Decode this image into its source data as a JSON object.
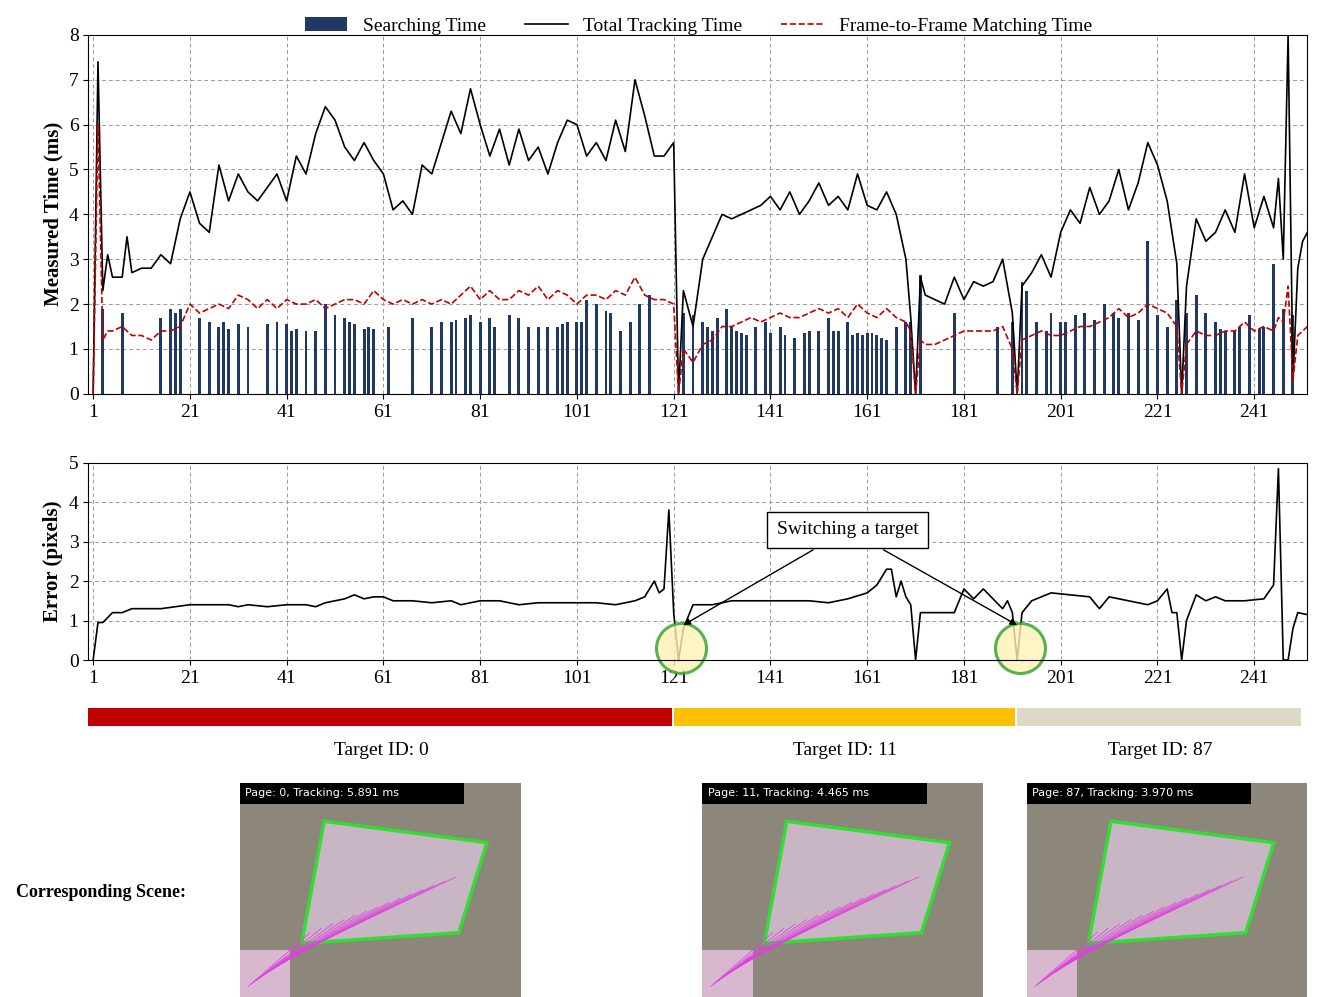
{
  "chart_data": [
    {
      "type": "line",
      "y_label": "Measured Time (ms)",
      "xlim": [
        0,
        252
      ],
      "xticks": [
        1,
        21,
        41,
        61,
        81,
        101,
        121,
        141,
        161,
        181,
        201,
        221,
        241
      ],
      "ylim": [
        0,
        8
      ],
      "yticks": [
        0,
        1,
        2,
        3,
        4,
        5,
        6,
        7,
        8
      ],
      "grid": true,
      "legend": "upper center",
      "series": [
        {
          "name": "Searching Time",
          "type": "bar",
          "color": "#1f3864",
          "x": [
            3,
            7,
            15,
            17,
            18,
            19,
            23,
            25,
            27,
            28,
            29,
            31,
            33,
            37,
            39,
            41,
            42,
            43,
            45,
            47,
            49,
            51,
            53,
            54,
            55,
            57,
            58,
            59,
            62,
            67,
            71,
            73,
            75,
            76,
            78,
            79,
            81,
            83,
            84,
            87,
            89,
            91,
            93,
            95,
            97,
            98,
            99,
            101,
            102,
            103,
            105,
            107,
            108,
            110,
            112,
            114,
            116,
            123,
            125,
            127,
            128,
            129,
            130,
            132,
            133,
            134,
            135,
            136,
            138,
            140,
            141,
            143,
            144,
            146,
            148,
            149,
            151,
            153,
            154,
            155,
            157,
            158,
            159,
            160,
            161,
            162,
            163,
            164,
            165,
            167,
            169,
            170,
            172,
            179,
            188,
            191,
            193,
            194,
            196,
            198,
            199,
            201,
            202,
            204,
            206,
            208,
            210,
            212,
            213,
            215,
            217,
            219,
            221,
            223,
            225,
            227,
            229,
            231,
            233,
            234,
            235,
            237,
            238,
            240,
            242,
            243,
            245,
            247,
            249
          ],
          "values": [
            1.9,
            1.8,
            1.7,
            1.9,
            1.8,
            1.9,
            1.7,
            1.6,
            1.5,
            1.6,
            1.45,
            1.55,
            1.5,
            1.55,
            1.6,
            1.55,
            1.4,
            1.45,
            1.4,
            1.4,
            2.0,
            1.75,
            1.7,
            1.6,
            1.55,
            1.45,
            1.5,
            1.45,
            1.5,
            1.7,
            1.5,
            1.6,
            1.6,
            1.65,
            1.7,
            1.75,
            1.6,
            1.7,
            1.5,
            1.75,
            1.7,
            1.5,
            1.5,
            1.5,
            1.5,
            1.55,
            1.6,
            1.6,
            1.6,
            2.1,
            2.0,
            1.85,
            1.8,
            1.4,
            1.6,
            2.0,
            2.2,
            1.8,
            1.75,
            1.6,
            1.5,
            1.4,
            1.7,
            1.9,
            1.5,
            1.4,
            1.35,
            1.3,
            1.5,
            1.6,
            1.35,
            1.5,
            1.3,
            1.25,
            1.35,
            1.4,
            1.4,
            1.7,
            1.4,
            1.4,
            1.6,
            1.3,
            1.35,
            1.3,
            1.35,
            1.35,
            1.3,
            1.25,
            1.2,
            1.5,
            1.6,
            1.6,
            2.65,
            1.8,
            1.5,
            1.6,
            2.5,
            2.3,
            1.6,
            1.4,
            1.8,
            1.6,
            1.6,
            1.75,
            1.8,
            1.65,
            2.0,
            1.8,
            1.7,
            1.8,
            1.65,
            3.4,
            1.75,
            1.5,
            2.1,
            1.8,
            2.2,
            1.8,
            1.6,
            1.45,
            1.4,
            1.4,
            1.5,
            1.75,
            1.45,
            1.5,
            2.9,
            1.9,
            1.75
          ]
        },
        {
          "name": "Total Tracking Time",
          "type": "line",
          "color": "#000000",
          "line_style": "solid",
          "x": [
            1,
            2,
            3,
            4,
            5,
            7,
            8,
            9,
            11,
            13,
            15,
            17,
            19,
            21,
            23,
            25,
            27,
            29,
            31,
            33,
            35,
            37,
            39,
            41,
            43,
            45,
            47,
            49,
            51,
            53,
            55,
            57,
            59,
            61,
            63,
            65,
            67,
            69,
            71,
            73,
            75,
            77,
            79,
            81,
            83,
            85,
            87,
            89,
            91,
            93,
            95,
            97,
            99,
            101,
            103,
            105,
            107,
            109,
            111,
            113,
            115,
            117,
            119,
            121,
            122,
            123,
            125,
            127,
            129,
            131,
            133,
            135,
            137,
            139,
            141,
            143,
            145,
            147,
            149,
            151,
            153,
            155,
            157,
            159,
            161,
            163,
            165,
            167,
            169,
            170,
            171,
            172,
            173,
            175,
            177,
            179,
            181,
            183,
            185,
            187,
            189,
            191,
            192,
            193,
            195,
            197,
            199,
            201,
            203,
            205,
            207,
            209,
            211,
            213,
            215,
            217,
            219,
            221,
            223,
            225,
            226,
            227,
            229,
            231,
            233,
            235,
            237,
            239,
            241,
            243,
            245,
            246,
            247,
            248,
            249,
            250,
            251,
            252
          ],
          "values": [
            0,
            7.4,
            2.3,
            3.1,
            2.6,
            2.6,
            3.5,
            2.7,
            2.8,
            2.8,
            3.1,
            2.9,
            3.9,
            4.5,
            3.8,
            3.6,
            5.1,
            4.3,
            4.9,
            4.5,
            4.3,
            4.6,
            4.9,
            4.3,
            5.3,
            4.9,
            5.8,
            6.4,
            6.1,
            5.5,
            5.2,
            5.6,
            5.2,
            4.9,
            4.1,
            4.3,
            4.0,
            5.1,
            4.9,
            5.6,
            6.3,
            5.8,
            6.8,
            6.0,
            5.3,
            5.9,
            5.1,
            5.9,
            5.2,
            5.5,
            4.9,
            5.6,
            6.1,
            6.0,
            5.3,
            5.6,
            5.2,
            6.1,
            5.4,
            7.0,
            6.2,
            5.3,
            5.3,
            5.6,
            0,
            2.3,
            1.5,
            3.0,
            3.5,
            4.0,
            3.9,
            4.0,
            4.1,
            4.2,
            4.4,
            4.1,
            4.5,
            4.0,
            4.3,
            4.7,
            4.2,
            4.4,
            4.1,
            4.9,
            4.2,
            4.1,
            4.5,
            4.0,
            3.0,
            1.7,
            0,
            2.6,
            2.2,
            2.1,
            2.0,
            2.6,
            2.1,
            2.5,
            2.4,
            2.5,
            3.0,
            1.8,
            0,
            2.4,
            2.7,
            3.1,
            2.6,
            3.6,
            4.1,
            3.8,
            4.6,
            4.0,
            4.3,
            5.0,
            4.1,
            4.7,
            5.6,
            5.1,
            4.3,
            2.9,
            0,
            2.4,
            3.9,
            3.4,
            3.6,
            4.1,
            3.6,
            4.9,
            3.7,
            4.4,
            3.7,
            4.8,
            3.0,
            8.0,
            0.3,
            2.8,
            3.4,
            3.6
          ]
        },
        {
          "name": "Frame-to-Frame Matching Time",
          "type": "line",
          "color": "#c00000",
          "line_style": "dashed",
          "x": [
            1,
            2,
            3,
            4,
            5,
            7,
            8,
            9,
            11,
            13,
            15,
            17,
            19,
            21,
            23,
            25,
            27,
            29,
            31,
            33,
            35,
            37,
            39,
            41,
            43,
            45,
            47,
            49,
            51,
            53,
            55,
            57,
            59,
            61,
            63,
            65,
            67,
            69,
            71,
            73,
            75,
            77,
            79,
            81,
            83,
            85,
            87,
            89,
            91,
            93,
            95,
            97,
            99,
            101,
            103,
            105,
            107,
            109,
            111,
            113,
            115,
            117,
            119,
            121,
            122,
            123,
            125,
            127,
            129,
            131,
            133,
            135,
            137,
            139,
            141,
            143,
            145,
            147,
            149,
            151,
            153,
            155,
            157,
            159,
            161,
            163,
            165,
            167,
            169,
            170,
            171,
            172,
            173,
            175,
            177,
            179,
            181,
            183,
            185,
            187,
            189,
            191,
            192,
            193,
            195,
            197,
            199,
            201,
            203,
            205,
            207,
            209,
            211,
            213,
            215,
            217,
            219,
            221,
            223,
            225,
            226,
            227,
            229,
            231,
            233,
            235,
            237,
            239,
            241,
            243,
            245,
            246,
            247,
            248,
            249,
            250,
            251,
            252
          ],
          "values": [
            0,
            6.0,
            1.2,
            1.4,
            1.4,
            1.5,
            1.4,
            1.3,
            1.3,
            1.2,
            1.4,
            1.4,
            1.5,
            2.0,
            1.8,
            1.9,
            2.0,
            1.9,
            2.2,
            2.1,
            1.9,
            2.1,
            1.9,
            2.1,
            2.0,
            2.0,
            2.1,
            1.9,
            2.0,
            2.1,
            2.1,
            2.0,
            2.3,
            2.1,
            2.0,
            2.1,
            2.0,
            2.1,
            2.0,
            2.1,
            2.0,
            2.2,
            2.4,
            2.1,
            2.3,
            2.1,
            2.1,
            2.3,
            2.2,
            2.4,
            2.1,
            2.3,
            2.2,
            2.0,
            2.2,
            2.2,
            2.1,
            2.3,
            2.2,
            2.6,
            2.2,
            2.1,
            2.1,
            2.0,
            0,
            1.0,
            0.7,
            1.1,
            1.2,
            1.5,
            1.5,
            1.6,
            1.7,
            1.6,
            1.7,
            1.8,
            1.7,
            1.7,
            1.8,
            1.9,
            1.8,
            1.9,
            1.7,
            2.0,
            1.8,
            1.7,
            1.9,
            1.7,
            1.6,
            1.4,
            0,
            1.2,
            1.1,
            1.1,
            1.2,
            1.3,
            1.4,
            1.4,
            1.4,
            1.4,
            1.5,
            1.0,
            0,
            1.2,
            1.3,
            1.4,
            1.3,
            1.3,
            1.4,
            1.5,
            1.5,
            1.6,
            1.7,
            1.9,
            1.7,
            1.8,
            2.0,
            1.9,
            1.8,
            1.5,
            0,
            1.1,
            1.4,
            1.3,
            1.3,
            1.4,
            1.4,
            1.6,
            1.4,
            1.5,
            1.4,
            1.7,
            1.6,
            2.4,
            0.3,
            1.3,
            1.4,
            1.5
          ]
        }
      ]
    },
    {
      "type": "line",
      "y_label": "Error (pixels)",
      "xlim": [
        0,
        252
      ],
      "xticks": [
        1,
        21,
        41,
        61,
        81,
        101,
        121,
        141,
        161,
        181,
        201,
        221,
        241
      ],
      "ylim": [
        0,
        5
      ],
      "yticks": [
        0,
        1,
        2,
        3,
        4,
        5
      ],
      "grid": true,
      "color": "#000000",
      "x": [
        1,
        2,
        3,
        5,
        7,
        9,
        15,
        21,
        25,
        29,
        31,
        33,
        37,
        41,
        45,
        47,
        49,
        53,
        55,
        57,
        59,
        61,
        63,
        67,
        71,
        75,
        77,
        81,
        85,
        89,
        93,
        97,
        101,
        105,
        109,
        113,
        115,
        117,
        118,
        119,
        120,
        121,
        122,
        123,
        125,
        129,
        133,
        137,
        141,
        145,
        149,
        153,
        155,
        157,
        161,
        163,
        165,
        166,
        167,
        168,
        169,
        170,
        171,
        172,
        175,
        179,
        181,
        183,
        185,
        187,
        189,
        190,
        191,
        192,
        193,
        195,
        199,
        203,
        207,
        209,
        211,
        215,
        219,
        221,
        223,
        224,
        225,
        226,
        227,
        229,
        231,
        233,
        235,
        239,
        243,
        245,
        246,
        247,
        248,
        249,
        250,
        252
      ],
      "values": [
        0,
        0.95,
        0.95,
        1.2,
        1.2,
        1.3,
        1.3,
        1.4,
        1.4,
        1.4,
        1.35,
        1.4,
        1.35,
        1.4,
        1.4,
        1.35,
        1.45,
        1.55,
        1.65,
        1.55,
        1.6,
        1.6,
        1.5,
        1.5,
        1.45,
        1.5,
        1.4,
        1.5,
        1.5,
        1.4,
        1.45,
        1.45,
        1.45,
        1.45,
        1.4,
        1.5,
        1.6,
        2.0,
        1.7,
        1.8,
        3.8,
        1.2,
        0,
        0.8,
        1.4,
        1.4,
        1.5,
        1.5,
        1.5,
        1.5,
        1.5,
        1.45,
        1.5,
        1.55,
        1.7,
        1.9,
        2.3,
        2.3,
        1.6,
        2.0,
        1.6,
        1.4,
        0,
        1.2,
        1.2,
        1.2,
        1.8,
        1.55,
        1.8,
        1.55,
        1.3,
        1.5,
        1.2,
        0,
        1.2,
        1.5,
        1.7,
        1.65,
        1.6,
        1.3,
        1.6,
        1.5,
        1.4,
        1.5,
        1.8,
        1.2,
        1.2,
        0,
        1.0,
        1.65,
        1.5,
        1.6,
        1.5,
        1.5,
        1.55,
        1.9,
        4.85,
        0,
        0,
        0.8,
        1.2,
        1.15
      ],
      "annotations": [
        {
          "text": "Switching a target",
          "x": [
            122,
            192
          ]
        }
      ]
    }
  ],
  "timeline": [
    {
      "label": "Target ID: 0",
      "start": 1,
      "end": 121,
      "color": "#c00000"
    },
    {
      "label": "Target ID: 11",
      "start": 122,
      "end": 192,
      "color": "#ffc000"
    },
    {
      "label": "Target ID: 87",
      "start": 193,
      "end": 251,
      "color": "#ddd9c4"
    }
  ],
  "scenes": {
    "title": "Corresponding Scene:",
    "captions": [
      "Page: 0, Tracking: 5.891 ms",
      "Page: 11, Tracking: 4.465 ms",
      "Page: 87, Tracking: 3.970 ms"
    ]
  }
}
